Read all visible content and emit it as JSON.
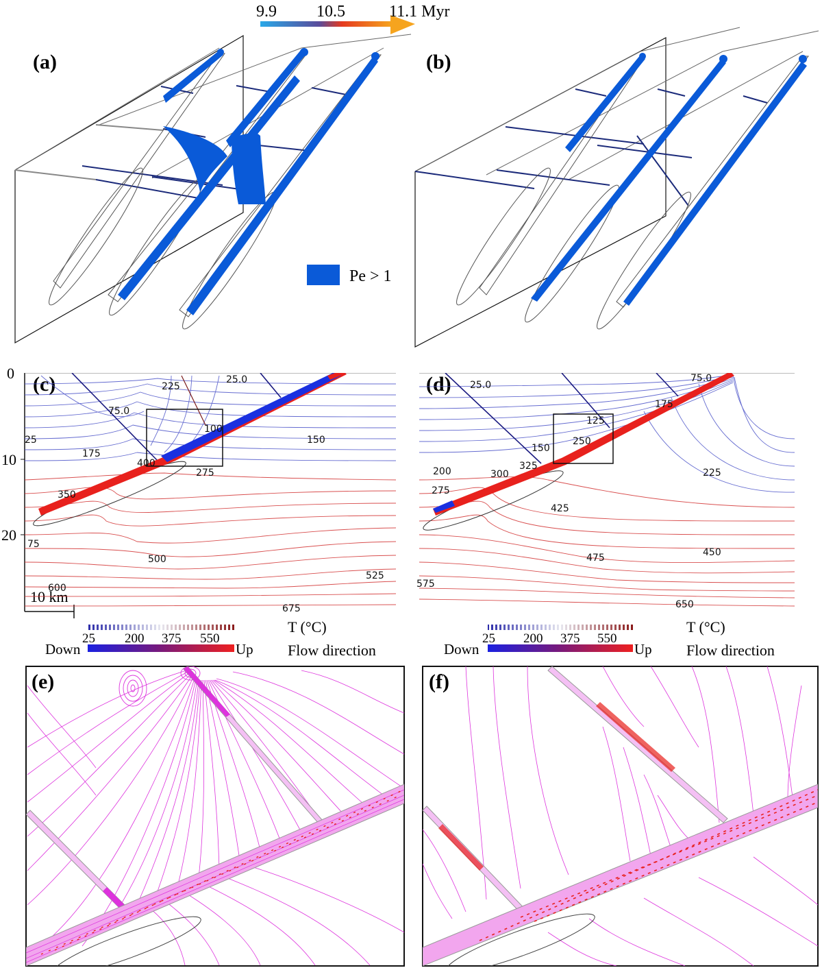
{
  "timebar": {
    "t1": "9.9",
    "t2": "10.5",
    "t3": "11.1 Myr",
    "colors": [
      "#29a8e8",
      "#e53a1f",
      "#f6a41e"
    ]
  },
  "panels": {
    "a": "(a)",
    "b": "(b)",
    "c": "(c)",
    "d": "(d)",
    "e": "(e)",
    "f": "(f)"
  },
  "legend_pe": {
    "label": "Pe > 1",
    "color": "#0a5ad8"
  },
  "panel_c": {
    "depth_ticks": [
      "0",
      "10",
      "20"
    ],
    "scale_label": "10 km",
    "contour_labels": [
      "225",
      "25.0",
      "75.0",
      "100",
      "150",
      "25",
      "175",
      "400",
      "275",
      "350",
      "75",
      "500",
      "525",
      "600",
      "675"
    ]
  },
  "panel_d": {
    "contour_labels": [
      "25.0",
      "75.0",
      "175",
      "125",
      "250",
      "150",
      "325",
      "300",
      "200",
      "275",
      "225",
      "425",
      "475",
      "450",
      "575",
      "650"
    ]
  },
  "colorbar": {
    "temp_ticks": [
      "25",
      "200",
      "375",
      "550"
    ],
    "temp_label": "T (°C)",
    "down": "Down",
    "up": "Up",
    "flow_label": "Flow direction"
  },
  "colors": {
    "blue": "#1a20c8",
    "red": "#e8211d",
    "magenta": "#dd33dd",
    "frame": "#111111"
  }
}
